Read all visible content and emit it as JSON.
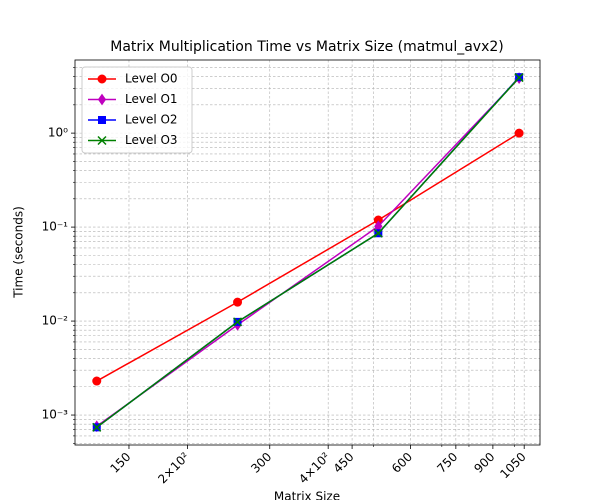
{
  "chart_data": {
    "type": "line",
    "title": "Matrix Multiplication Time vs Matrix Size (matmul_avx2)",
    "x_label": "Matrix Size",
    "y_label": "Time (seconds)",
    "x": [
      128,
      256,
      512,
      1024
    ],
    "series": [
      {
        "name": "Level O0",
        "color": "#ff0000",
        "marker": "circle",
        "values": [
          0.0023,
          0.0159,
          0.119,
          1.0
        ]
      },
      {
        "name": "Level O1",
        "color": "#bf00bf",
        "marker": "diamond",
        "values": [
          0.00076,
          0.0091,
          0.102,
          3.85
        ]
      },
      {
        "name": "Level O2",
        "color": "#0000ff",
        "marker": "square",
        "values": [
          0.00074,
          0.0098,
          0.086,
          3.94
        ]
      },
      {
        "name": "Level O3",
        "color": "#008000",
        "marker": "x",
        "values": [
          0.00074,
          0.0098,
          0.086,
          3.9
        ]
      }
    ],
    "xscale": "log",
    "yscale": "log",
    "xlim": [
      115,
      1135
    ],
    "ylim": [
      0.00048,
      6.0
    ],
    "xticks": [
      150,
      {
        "value": 200,
        "label": "2×10²"
      },
      300,
      {
        "value": 400,
        "label": "4×10²"
      },
      450,
      600,
      750,
      900,
      1050
    ],
    "xminorticks": [
      500,
      700,
      800,
      1000
    ],
    "yticks": [
      {
        "value": 0.001,
        "label": "10⁻³"
      },
      {
        "value": 0.01,
        "label": "10⁻²"
      },
      {
        "value": 0.1,
        "label": "10⁻¹"
      },
      {
        "value": 1,
        "label": "10⁰"
      }
    ],
    "yminorticks": [
      0.0005,
      0.0006,
      0.0007,
      0.0008,
      0.0009,
      0.002,
      0.003,
      0.004,
      0.005,
      0.006,
      0.007,
      0.008,
      0.009,
      0.02,
      0.03,
      0.04,
      0.05,
      0.06,
      0.07,
      0.08,
      0.09,
      0.2,
      0.3,
      0.4,
      0.5,
      0.6,
      0.7,
      0.8,
      0.9,
      2,
      3,
      4,
      5
    ],
    "grid": true,
    "legend": "upper left"
  }
}
